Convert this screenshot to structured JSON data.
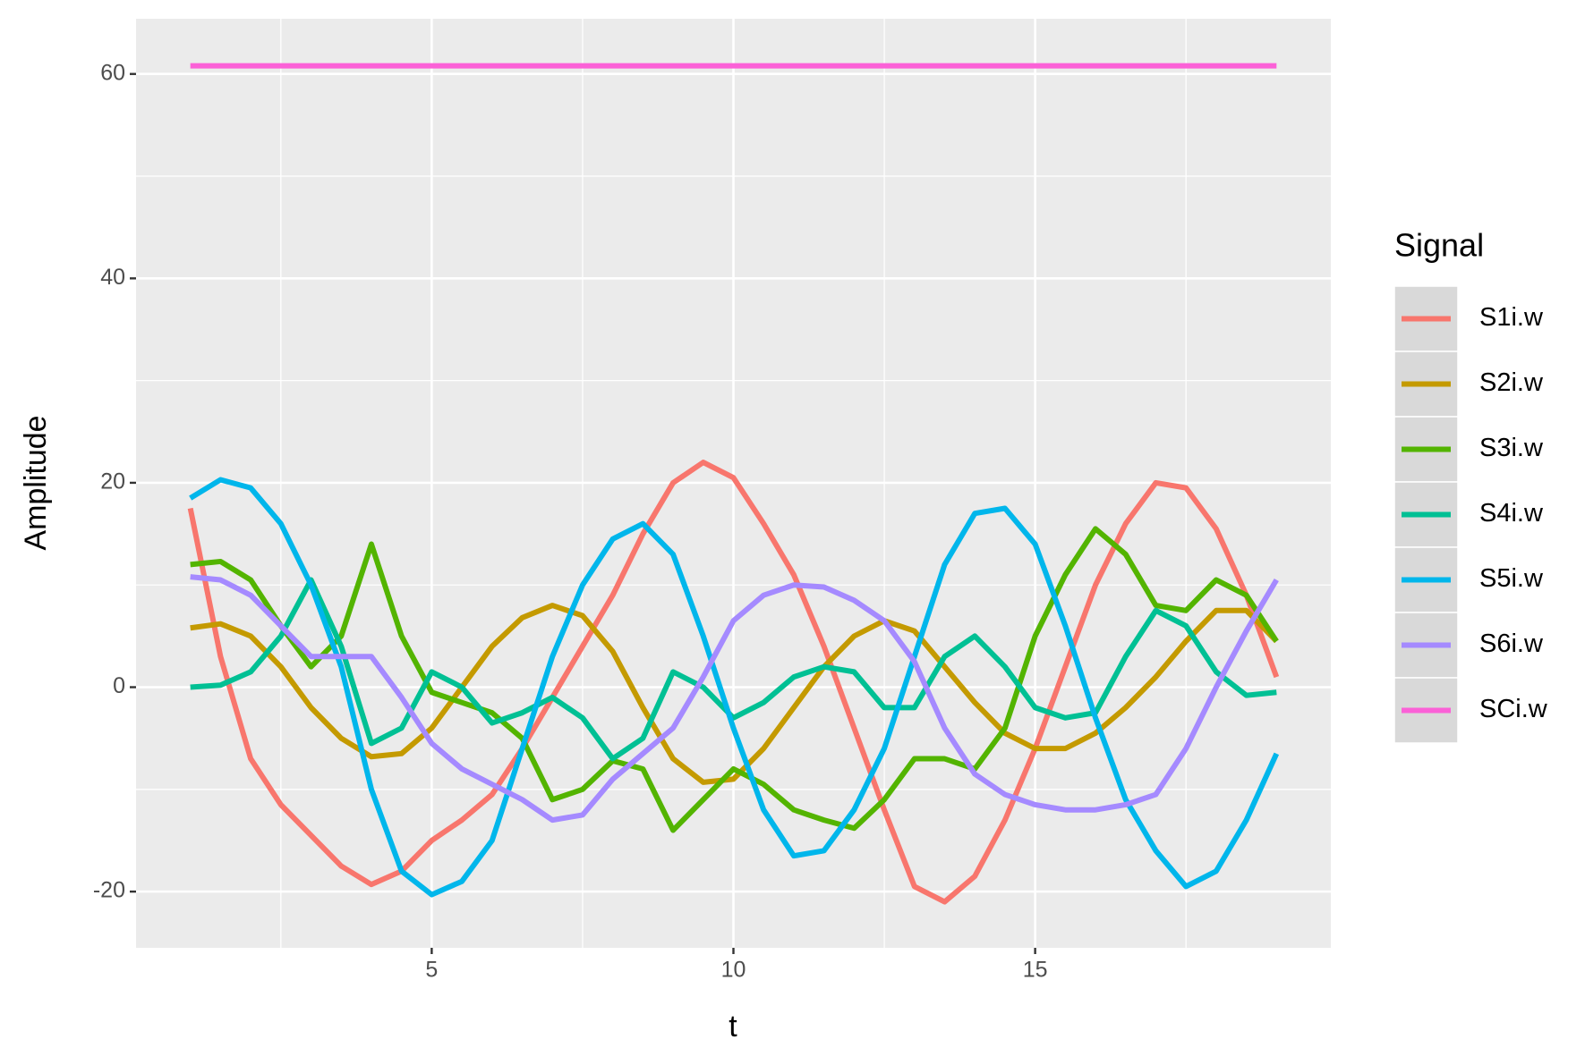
{
  "chart_data": {
    "type": "line",
    "x_label": "t",
    "y_label": "Amplitude",
    "x": [
      1,
      1.5,
      2,
      2.5,
      3,
      3.5,
      4,
      4.5,
      5,
      5.5,
      6,
      6.5,
      7,
      7.5,
      8,
      8.5,
      9,
      9.5,
      10,
      10.5,
      11,
      11.5,
      12,
      12.5,
      13,
      13.5,
      14,
      14.5,
      15,
      15.5,
      16,
      16.5,
      17,
      17.5,
      18,
      18.5,
      19
    ],
    "series": [
      {
        "name": "S1i.w",
        "color": "#F8766D",
        "values": [
          17.5,
          3,
          -7,
          -11.5,
          -14.5,
          -17.5,
          -19.3,
          -18,
          -15,
          -13,
          -10.5,
          -6,
          -1,
          4,
          9,
          15,
          20,
          22,
          20.5,
          16,
          11,
          4,
          -4,
          -12,
          -19.5,
          -21,
          -18.5,
          -13,
          -6,
          2,
          10,
          16,
          20,
          19.5,
          15.5,
          9,
          1
        ]
      },
      {
        "name": "S2i.w",
        "color": "#C49A00",
        "values": [
          5.8,
          6.2,
          5,
          2,
          -2,
          -5,
          -6.8,
          -6.5,
          -4,
          0,
          4,
          6.8,
          8,
          7,
          3.5,
          -2,
          -7,
          -9.3,
          -9,
          -6,
          -2,
          2,
          5,
          6.5,
          5.5,
          2,
          -1.5,
          -4.5,
          -6,
          -6,
          -4.5,
          -2,
          1,
          4.5,
          7.5,
          7.5,
          4.5
        ]
      },
      {
        "name": "S3i.w",
        "color": "#53B400",
        "values": [
          12,
          12.3,
          10.5,
          6,
          2,
          5,
          14,
          5,
          -0.5,
          -1.5,
          -2.5,
          -5,
          -11,
          -10,
          -7.2,
          -8,
          -14,
          -11,
          -8,
          -9.5,
          -12,
          -13,
          -13.8,
          -11,
          -7,
          -7,
          -8,
          -4,
          5,
          11,
          15.5,
          13,
          8,
          7.5,
          10.5,
          9,
          4.5
        ]
      },
      {
        "name": "S4i.w",
        "color": "#00C094",
        "values": [
          0,
          0.2,
          1.5,
          5,
          10.5,
          4,
          -5.5,
          -4,
          1.5,
          0,
          -3.5,
          -2.5,
          -1,
          -3,
          -7,
          -5,
          1.5,
          0,
          -3,
          -1.5,
          1,
          2,
          1.5,
          -2,
          -2,
          3,
          5,
          2,
          -2,
          -3,
          -2.5,
          3,
          7.5,
          6,
          1.5,
          -0.8,
          -0.5
        ]
      },
      {
        "name": "S5i.w",
        "color": "#00B6EB",
        "values": [
          18.5,
          20.3,
          19.5,
          16,
          10,
          2,
          -10,
          -18,
          -20.3,
          -19,
          -15,
          -6,
          3,
          10,
          14.5,
          16,
          13,
          5,
          -4,
          -12,
          -16.5,
          -16,
          -12,
          -6,
          3,
          12,
          17,
          17.5,
          14,
          6,
          -3,
          -11,
          -16,
          -19.5,
          -18,
          -13,
          -6.5
        ]
      },
      {
        "name": "S6i.w",
        "color": "#A58AFF",
        "values": [
          10.8,
          10.5,
          9,
          6,
          3,
          3,
          3,
          -1,
          -5.5,
          -8,
          -9.5,
          -11,
          -13,
          -12.5,
          -9,
          -6.5,
          -4,
          1,
          6.5,
          9,
          10,
          9.8,
          8.5,
          6.5,
          2.5,
          -4,
          -8.5,
          -10.5,
          -11.5,
          -12,
          -12,
          -11.5,
          -10.5,
          -6,
          0,
          5.5,
          10.5
        ]
      },
      {
        "name": "SCi.w",
        "color": "#FB61D7",
        "values": [
          60.8,
          60.8,
          60.8,
          60.8,
          60.8,
          60.8,
          60.8,
          60.8,
          60.8,
          60.8,
          60.8,
          60.8,
          60.8,
          60.8,
          60.8,
          60.8,
          60.8,
          60.8,
          60.8,
          60.8,
          60.8,
          60.8,
          60.8,
          60.8,
          60.8,
          60.8,
          60.8,
          60.8,
          60.8,
          60.8,
          60.8,
          60.8,
          60.8,
          60.8,
          60.8,
          60.8,
          60.8
        ]
      }
    ],
    "legend_title": "Signal",
    "legend_position": "right",
    "xlim": [
      0.1,
      19.9
    ],
    "xticks": [
      5,
      10,
      15
    ],
    "ylim": [
      -25.5,
      65.4
    ],
    "yticks": [
      -20,
      0,
      20,
      40,
      60
    ],
    "grid": true
  }
}
